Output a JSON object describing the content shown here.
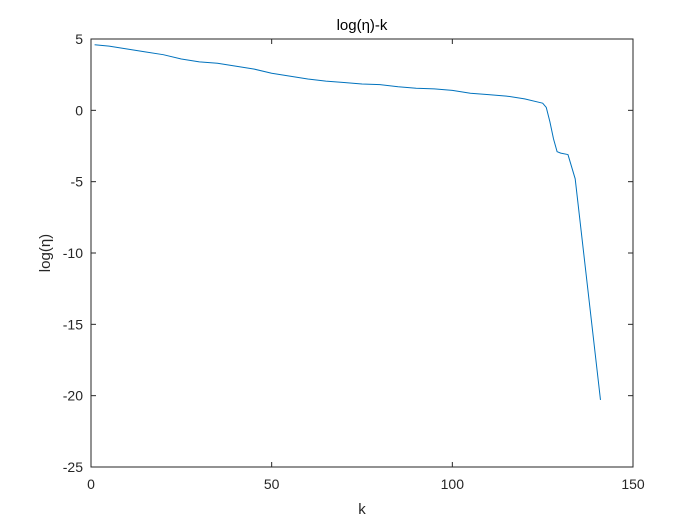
{
  "chart_data": {
    "type": "line",
    "title": "log(η)-k",
    "xlabel": "k",
    "ylabel": "log(η)",
    "xlim": [
      0,
      150
    ],
    "ylim": [
      -25,
      5
    ],
    "xticks": [
      0,
      50,
      100,
      150
    ],
    "yticks": [
      5,
      0,
      -5,
      -10,
      -15,
      -20,
      -25
    ],
    "xtick_labels": [
      "0",
      "50",
      "100",
      "150"
    ],
    "ytick_labels": [
      "5",
      "0",
      "-5",
      "-10",
      "-15",
      "-20",
      "-25"
    ],
    "grid": false,
    "box": true,
    "line_color": "#0072BD",
    "series": [
      {
        "x": [
          1,
          5,
          10,
          15,
          20,
          25,
          30,
          35,
          40,
          45,
          50,
          55,
          60,
          65,
          70,
          75,
          80,
          85,
          90,
          95,
          100,
          105,
          110,
          115,
          120,
          125,
          126,
          127,
          128,
          129,
          130,
          132,
          134,
          141
        ],
        "y": [
          4.6,
          4.5,
          4.3,
          4.1,
          3.9,
          3.6,
          3.4,
          3.3,
          3.1,
          2.9,
          2.6,
          2.4,
          2.2,
          2.05,
          1.95,
          1.85,
          1.8,
          1.65,
          1.55,
          1.5,
          1.4,
          1.2,
          1.1,
          1.0,
          0.8,
          0.5,
          0.2,
          -0.8,
          -2.0,
          -2.9,
          -3.0,
          -3.1,
          -4.8,
          -20.3
        ]
      }
    ]
  }
}
